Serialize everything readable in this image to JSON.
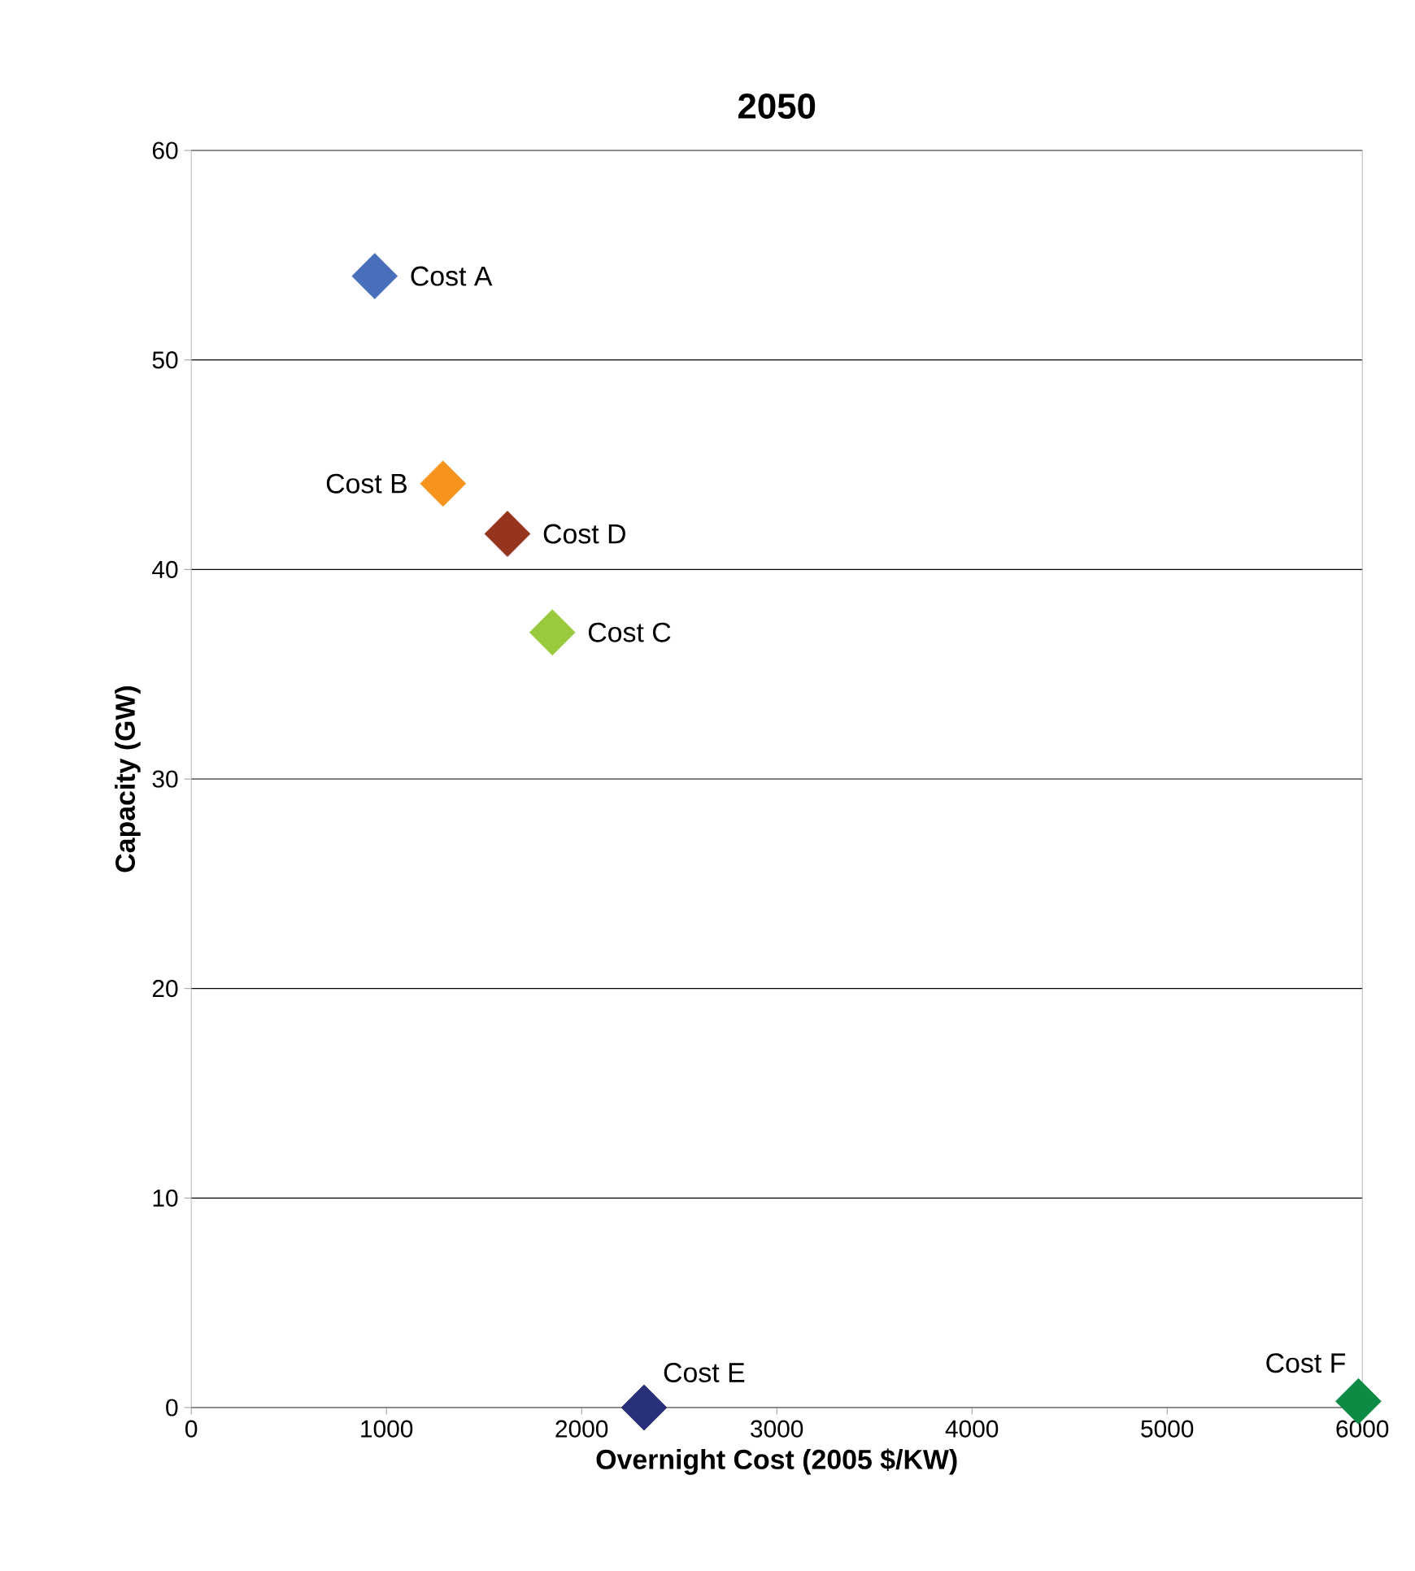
{
  "chart_data": {
    "type": "scatter",
    "title": "2050",
    "xlabel": "Overnight Cost (2005 $/KW)",
    "ylabel": "Capacity (GW)",
    "xlim": [
      0,
      6000
    ],
    "xticks": [
      0,
      1000,
      2000,
      3000,
      4000,
      5000,
      6000
    ],
    "ylim": [
      0,
      60
    ],
    "yticks": [
      0,
      10,
      20,
      30,
      40,
      50,
      60
    ],
    "grid": "y",
    "marker": "diamond",
    "series": [
      {
        "name": "Cost A",
        "color": "#4a6fba",
        "x": [
          940
        ],
        "values": [
          54
        ]
      },
      {
        "name": "Cost B",
        "color": "#f7941d",
        "x": [
          1290
        ],
        "values": [
          44.1
        ]
      },
      {
        "name": "Cost D",
        "color": "#97341f",
        "x": [
          1620
        ],
        "values": [
          41.7
        ]
      },
      {
        "name": "Cost C",
        "color": "#99c93c",
        "x": [
          1850
        ],
        "values": [
          37
        ]
      },
      {
        "name": "Cost E",
        "color": "#29307a",
        "x": [
          2320
        ],
        "values": [
          0
        ]
      },
      {
        "name": "Cost F",
        "color": "#0d8b45",
        "x": [
          5980
        ],
        "values": [
          0.3
        ]
      }
    ]
  }
}
